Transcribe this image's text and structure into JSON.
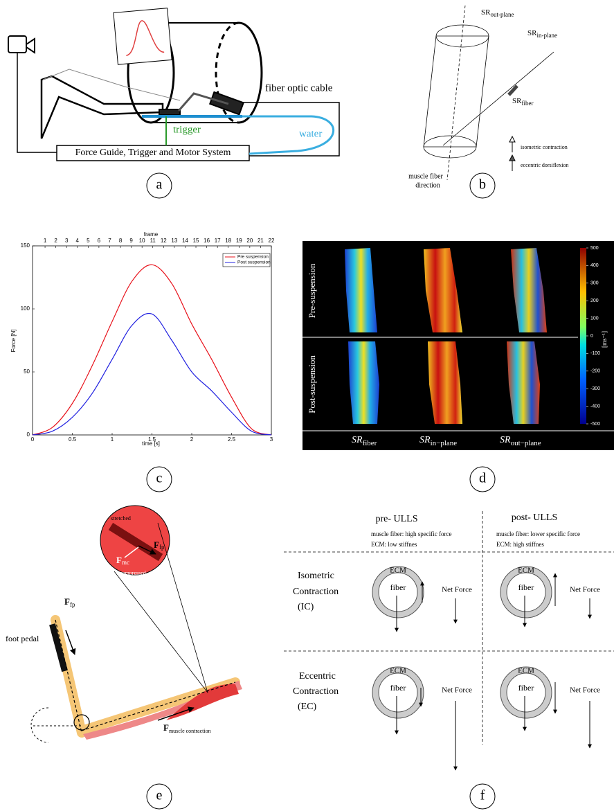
{
  "panel_labels": [
    "a",
    "b",
    "c",
    "d",
    "e",
    "f"
  ],
  "a": {
    "cable": "fiber optic cable",
    "trigger": "trigger",
    "water": "water",
    "system": "Force Guide, Trigger and Motor System"
  },
  "b": {
    "sr_out": {
      "base": "SR",
      "sub": "out-plane"
    },
    "sr_in": {
      "base": "SR",
      "sub": "in-plane"
    },
    "sr_fiber": {
      "base": "SR",
      "sub": "fiber"
    },
    "legend": [
      "isometric contraction",
      "eccentric dorsiflexion"
    ],
    "direction": [
      "muscle fiber",
      "direction"
    ]
  },
  "chart_data": {
    "type": "line",
    "xlabel": "time [s]",
    "ylabel": "Force [N]",
    "x2label": "frame",
    "x": [
      0,
      0.25,
      0.5,
      0.75,
      1,
      1.25,
      1.5,
      1.75,
      2,
      2.25,
      2.5,
      2.75,
      3
    ],
    "series": [
      {
        "name": "Pre suspension",
        "color": "#e8121b",
        "values": [
          0,
          6,
          25,
          55,
          90,
          122,
          135,
          120,
          88,
          60,
          30,
          5,
          0
        ]
      },
      {
        "name": "Post suspension",
        "color": "#2020e0",
        "values": [
          0,
          3,
          14,
          33,
          60,
          87,
          96,
          75,
          50,
          35,
          18,
          3,
          0
        ]
      }
    ],
    "xlim": [
      0,
      3
    ],
    "xticks": [
      0,
      0.5,
      1,
      1.5,
      2,
      2.5,
      3
    ],
    "ylim": [
      0,
      150
    ],
    "yticks": [
      0,
      50,
      100,
      150
    ],
    "x2lim": [
      -0.16,
      22
    ],
    "x2ticks": [
      1,
      2,
      3,
      4,
      5,
      6,
      7,
      8,
      9,
      10,
      11,
      12,
      13,
      14,
      15,
      16,
      17,
      18,
      19,
      20,
      21,
      22
    ],
    "legend": "upper right",
    "grid": false
  },
  "d": {
    "rows": [
      "Pre-suspension",
      "Post-suspension"
    ],
    "columns": [
      {
        "base": "SR",
        "sub": "fiber"
      },
      {
        "base": "SR",
        "sub": "in−plane"
      },
      {
        "base": "SR",
        "sub": "out−plane"
      }
    ],
    "colorbar": {
      "lim": [
        -500,
        500
      ],
      "ticks": [
        500,
        400,
        300,
        200,
        100,
        0,
        -100,
        -200,
        -300,
        -400,
        -500
      ],
      "unit": "[ms⁻¹]"
    }
  },
  "e": {
    "stretched": "stretched",
    "compressed": "compressed",
    "f_fp_inset": {
      "base": "F",
      "sub": "fp"
    },
    "f_mc": {
      "base": "F",
      "sub": "mc"
    },
    "foot_pedal": "foot pedal",
    "f_fp": {
      "base": "F",
      "sub": "fp"
    },
    "f_muscle": {
      "base": "F",
      "sub": "muscle contraction"
    }
  },
  "f": {
    "columns": [
      {
        "title": "pre- ULLS",
        "notes": [
          "muscle fiber: high specific force",
          "ECM: low stiffnes"
        ]
      },
      {
        "title": "post- ULLS",
        "notes": [
          "muscle fiber: lower specific force",
          "ECM: high stiffnes"
        ]
      }
    ],
    "rows": [
      [
        "Isometric",
        "Contraction",
        "(IC)"
      ],
      [
        "Eccentric",
        "Contraction",
        "(EC)"
      ]
    ],
    "ecm": "ECM",
    "fiber": "fiber",
    "net_force": "Net Force"
  }
}
